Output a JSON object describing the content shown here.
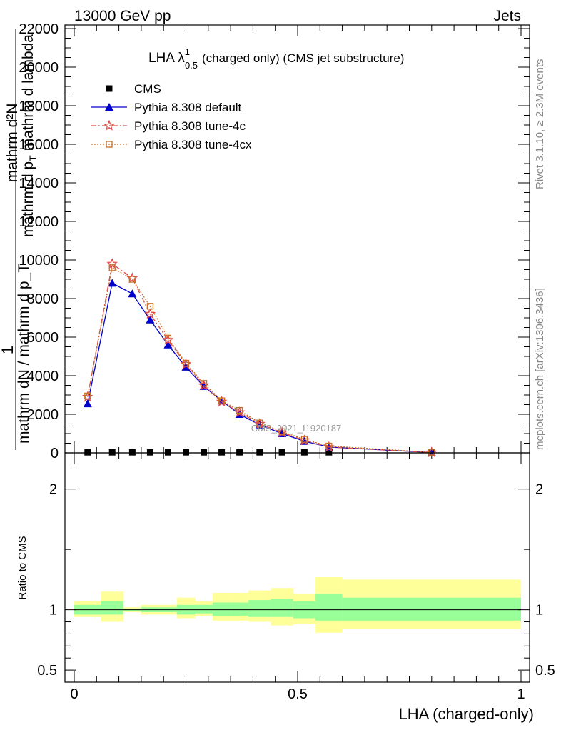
{
  "header": {
    "left": "13000 GeV pp",
    "right": "Jets"
  },
  "side_labels": {
    "rivet": "Rivet 3.1.10, ≥ 2.3M events",
    "mcplots": "mcplots.cern.ch [arXiv:1306.3436]"
  },
  "chart_data": {
    "type": "line",
    "title": "LHA λ^1_0.5 (charged only) (CMS jet substructure)",
    "title_parts": {
      "main": "LHA λ",
      "superscript": "1",
      "subscript": "0.5",
      "rest": "(charged only) (CMS jet substructure)"
    },
    "watermark": "CMS_2021_I1920187",
    "xlabel": "LHA (charged-only)",
    "ylabel_upper": "mathrm dN / mathrm d p_T mathrm d lambda",
    "ylabel_upper_numerator": "mathrm d²N",
    "ylabel_upper_denominator_parts": [
      "mathrm d p",
      "T",
      "mathrm d lambda"
    ],
    "ylabel_upper_prefix": "1",
    "ylabel_upper_fraction": "mathrm dN / mathrm d p_T",
    "ylabel_ratio": "Ratio to CMS",
    "xlim": [
      0,
      1
    ],
    "ylim_main": [
      0,
      22000
    ],
    "ylim_ratio": [
      0.4,
      2.3
    ],
    "x_ticks": [
      {
        "value": 0,
        "label": "0"
      },
      {
        "value": 0.5,
        "label": "0.5"
      },
      {
        "value": 1,
        "label": "1"
      }
    ],
    "y_ticks_main": [
      {
        "value": 0,
        "label": "0"
      },
      {
        "value": 2000,
        "label": "2000"
      },
      {
        "value": 4000,
        "label": "4000"
      },
      {
        "value": 6000,
        "label": "6000"
      },
      {
        "value": 8000,
        "label": "8000"
      },
      {
        "value": 10000,
        "label": "10000"
      },
      {
        "value": 12000,
        "label": "12000"
      },
      {
        "value": 14000,
        "label": "14000"
      },
      {
        "value": 16000,
        "label": "16000"
      },
      {
        "value": 18000,
        "label": "18000"
      },
      {
        "value": 20000,
        "label": "20000"
      },
      {
        "value": 22000,
        "label": "22000"
      }
    ],
    "y_ticks_ratio": [
      {
        "value": 0.5,
        "label": "0.5"
      },
      {
        "value": 1,
        "label": "1"
      },
      {
        "value": 2,
        "label": "2"
      }
    ],
    "legend_position": "top-left",
    "x": [
      0.03,
      0.085,
      0.13,
      0.17,
      0.21,
      0.25,
      0.29,
      0.33,
      0.37,
      0.415,
      0.465,
      0.515,
      0.57,
      0.8
    ],
    "bin_edges": [
      0.0,
      0.06,
      0.11,
      0.15,
      0.19,
      0.23,
      0.27,
      0.31,
      0.35,
      0.39,
      0.44,
      0.49,
      0.54,
      0.6,
      1.0
    ],
    "series": [
      {
        "name": "CMS",
        "color": "#000000",
        "marker": "square",
        "values": [
          30,
          30,
          30,
          30,
          30,
          30,
          30,
          30,
          30,
          30,
          30,
          30,
          30,
          30
        ]
      },
      {
        "name": "Pythia 8.308 default",
        "color": "#0000cc",
        "marker": "triangle",
        "line": "solid",
        "values": [
          2550,
          8800,
          8250,
          6900,
          5600,
          4450,
          3450,
          2700,
          2000,
          1450,
          1000,
          600,
          300,
          20
        ]
      },
      {
        "name": "Pythia 8.308 tune-4c",
        "color": "#e04a4a",
        "marker": "star",
        "line": "dashdot",
        "values": [
          2900,
          9800,
          9050,
          7200,
          5850,
          4600,
          3500,
          2650,
          2100,
          1500,
          1050,
          650,
          300,
          20
        ]
      },
      {
        "name": "Pythia 8.308 tune-4cx",
        "color": "#c87028",
        "marker": "open-square",
        "line": "dotted",
        "values": [
          2950,
          9600,
          9000,
          7600,
          5950,
          4650,
          3600,
          2700,
          2200,
          1550,
          1100,
          700,
          350,
          30
        ]
      }
    ],
    "ratio_bands": {
      "reference": 1.0,
      "inner_color": "#99ff99",
      "outer_color": "#ffff99",
      "inner_low": [
        0.96,
        0.96,
        0.99,
        0.98,
        0.98,
        0.96,
        0.97,
        0.95,
        0.95,
        0.94,
        0.94,
        0.93,
        0.91,
        0.91
      ],
      "inner_high": [
        1.04,
        1.07,
        1.01,
        1.02,
        1.02,
        1.04,
        1.04,
        1.06,
        1.06,
        1.08,
        1.09,
        1.07,
        1.13,
        1.1
      ],
      "outer_low": [
        0.94,
        0.9,
        0.98,
        0.96,
        0.96,
        0.93,
        0.95,
        0.91,
        0.91,
        0.9,
        0.87,
        0.88,
        0.81,
        0.84
      ],
      "outer_high": [
        1.07,
        1.15,
        1.02,
        1.04,
        1.04,
        1.1,
        1.07,
        1.14,
        1.14,
        1.16,
        1.18,
        1.13,
        1.27,
        1.25
      ]
    }
  }
}
